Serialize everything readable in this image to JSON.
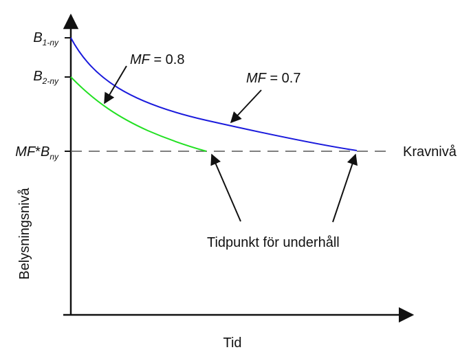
{
  "diagram": {
    "y_axis_label": "Belysningsnivå",
    "x_axis_label": "Tid",
    "level_labels": {
      "b1": {
        "main": "B",
        "sub": "1-ny"
      },
      "b2": {
        "main": "B",
        "sub": "2-ny"
      },
      "req": {
        "prefix": "MF",
        "star": "*",
        "main": "B",
        "sub": "ny"
      }
    },
    "requirement_label": "Kravnivå",
    "curve_labels": {
      "mf_08": {
        "mf": "MF",
        "rest": " = 0.8"
      },
      "mf_07": {
        "mf": "MF",
        "rest": " = 0.7"
      }
    },
    "maintenance_label": "Tidpunkt för underhåll",
    "colors": {
      "curve_mf_07": "#1a1adc",
      "curve_mf_08": "#22e022",
      "axis": "#111111",
      "requirement_line": "#555555"
    }
  }
}
